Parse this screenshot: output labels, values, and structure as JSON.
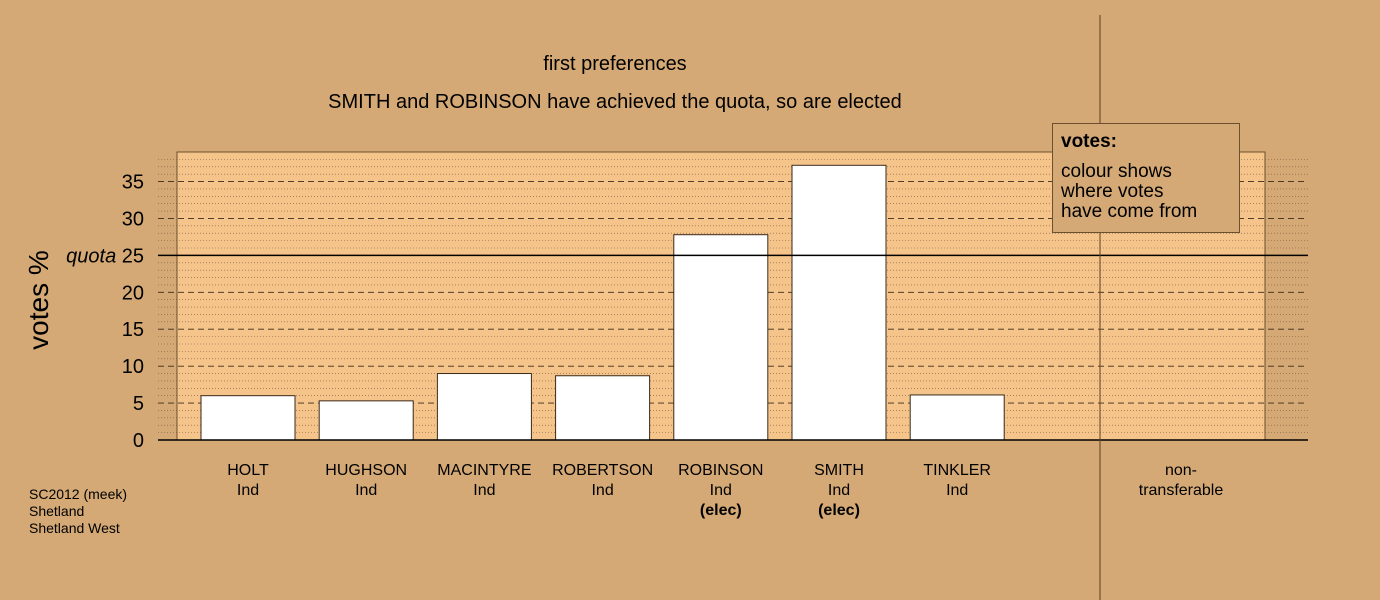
{
  "title": "first preferences",
  "subtitle": "SMITH and ROBINSON have achieved the quota, so are elected",
  "ylabel": "votes %",
  "quota_label": "quota",
  "legend": {
    "title": "votes:",
    "lines": [
      "colour shows",
      "where votes",
      "have come from"
    ]
  },
  "footer": [
    "SC2012 (meek)",
    "Shetland",
    "Shetland West"
  ],
  "non_transferable_label": [
    "non-",
    "transferable"
  ],
  "colors": {
    "background": "#d4a976",
    "plot_area": "#f5c48a",
    "bar_fill": "#ffffff"
  },
  "chart_data": {
    "type": "bar",
    "title": "first preferences",
    "subtitle": "SMITH and ROBINSON have achieved the quota, so are elected",
    "ylabel": "votes %",
    "ylim": [
      0,
      39
    ],
    "yticks": [
      0,
      5,
      10,
      15,
      20,
      30,
      35
    ],
    "quota": 25,
    "grid": true,
    "legend_placement": "top-right",
    "categories": [
      {
        "name": "HOLT",
        "party": "Ind",
        "status": ""
      },
      {
        "name": "HUGHSON",
        "party": "Ind",
        "status": ""
      },
      {
        "name": "MACINTYRE",
        "party": "Ind",
        "status": ""
      },
      {
        "name": "ROBERTSON",
        "party": "Ind",
        "status": ""
      },
      {
        "name": "ROBINSON",
        "party": "Ind",
        "status": "(elec)"
      },
      {
        "name": "SMITH",
        "party": "Ind",
        "status": "(elec)"
      },
      {
        "name": "TINKLER",
        "party": "Ind",
        "status": ""
      }
    ],
    "values": [
      6.0,
      5.3,
      9.0,
      8.7,
      27.8,
      37.2,
      6.1
    ],
    "non_transferable": 0
  }
}
